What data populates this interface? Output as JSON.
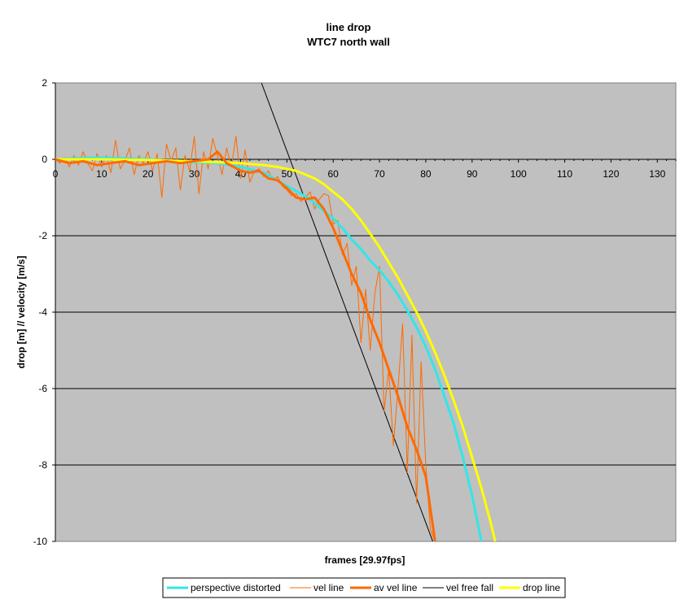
{
  "chart_data": {
    "type": "line",
    "title": "line drop",
    "subtitle": "WTC7 north wall",
    "xlabel": "frames [29.97fps]",
    "ylabel": "drop [m] // velocity [m/s]",
    "xlim": [
      0,
      134
    ],
    "ylim": [
      -10,
      2
    ],
    "xticks": [
      0,
      10,
      20,
      30,
      40,
      50,
      60,
      70,
      80,
      90,
      100,
      110,
      120,
      130
    ],
    "yticks": [
      2,
      0,
      -2,
      -4,
      -6,
      -8,
      -10
    ],
    "grid": "horizontal major",
    "plot_background": "#c0c0c0",
    "legend_position": "bottom",
    "series": [
      {
        "name": "perspective distorted",
        "color": "#33e6e6",
        "width": 3,
        "x": [
          0,
          5,
          10,
          15,
          20,
          25,
          30,
          35,
          40,
          45,
          50,
          53,
          55,
          57,
          60,
          62,
          64,
          66,
          68,
          70,
          72,
          74,
          76,
          78,
          80,
          82,
          84,
          86,
          88,
          90,
          92
        ],
        "y": [
          0,
          0.03,
          0.05,
          0.02,
          0,
          -0.05,
          -0.07,
          -0.1,
          -0.2,
          -0.35,
          -0.7,
          -0.9,
          -1.05,
          -1.25,
          -1.55,
          -1.8,
          -2.1,
          -2.35,
          -2.65,
          -2.9,
          -3.2,
          -3.55,
          -3.95,
          -4.4,
          -4.9,
          -5.5,
          -6.2,
          -6.9,
          -7.8,
          -8.8,
          -10
        ]
      },
      {
        "name": "vel line",
        "color": "#ff6a00",
        "width": 1,
        "x": [
          0,
          1,
          2,
          3,
          4,
          5,
          6,
          7,
          8,
          9,
          10,
          11,
          12,
          13,
          14,
          15,
          16,
          17,
          18,
          19,
          20,
          21,
          22,
          23,
          24,
          25,
          26,
          27,
          28,
          29,
          30,
          31,
          32,
          33,
          34,
          35,
          36,
          37,
          38,
          39,
          40,
          41,
          42,
          43,
          44,
          45,
          46,
          47,
          48,
          49,
          50,
          51,
          52,
          53,
          54,
          55,
          56,
          57,
          58,
          59,
          60,
          61,
          62,
          63,
          64,
          65,
          66,
          67,
          68,
          69,
          70,
          71,
          72,
          73,
          74,
          75,
          76,
          77,
          78,
          79,
          80,
          81,
          82
        ],
        "y": [
          0,
          -0.1,
          0.05,
          -0.2,
          0.1,
          -0.15,
          0.2,
          -0.1,
          -0.3,
          0.15,
          -0.2,
          0.1,
          -0.35,
          0.5,
          -0.25,
          -0.05,
          0.3,
          -0.4,
          0.1,
          -0.1,
          0.2,
          -0.3,
          0.15,
          -1.0,
          0.4,
          -0.05,
          0.3,
          -0.8,
          0.1,
          -0.3,
          0.6,
          -0.9,
          0.2,
          -0.25,
          0.55,
          0.1,
          -0.4,
          0.3,
          -0.2,
          0.6,
          -0.5,
          0.25,
          -0.6,
          -0.3,
          -0.25,
          -0.45,
          -0.3,
          -0.55,
          -0.45,
          -0.7,
          -0.8,
          -0.95,
          -0.9,
          -1.1,
          -1.0,
          -0.85,
          -1.3,
          -1.05,
          -0.9,
          -0.95,
          -1.7,
          -1.6,
          -2.5,
          -2.2,
          -3.3,
          -2.8,
          -4.8,
          -3.4,
          -5.0,
          -3.5,
          -2.8,
          -6.6,
          -5.5,
          -7.5,
          -6.0,
          -4.3,
          -8.2,
          -4.6,
          -9.0,
          -5.3,
          -8.0,
          -9.7,
          -10
        ]
      },
      {
        "name": "av vel line",
        "color": "#ff6a00",
        "width": 3,
        "x": [
          0,
          3,
          6,
          9,
          12,
          15,
          18,
          21,
          24,
          27,
          30,
          33,
          35,
          37,
          40,
          42,
          44,
          46,
          48,
          50,
          52,
          54,
          56,
          58,
          60,
          62,
          64,
          66,
          68,
          70,
          72,
          74,
          76,
          78,
          80,
          82
        ],
        "y": [
          0,
          -0.1,
          -0.05,
          -0.15,
          -0.1,
          -0.05,
          -0.15,
          -0.1,
          -0.05,
          -0.1,
          -0.05,
          0,
          0.2,
          -0.1,
          -0.3,
          -0.35,
          -0.3,
          -0.5,
          -0.55,
          -0.75,
          -1.0,
          -1.05,
          -1.0,
          -1.3,
          -1.8,
          -2.4,
          -3.0,
          -3.5,
          -4.2,
          -4.8,
          -5.5,
          -6.2,
          -7.0,
          -7.6,
          -8.3,
          -10
        ]
      },
      {
        "name": "vel free fall",
        "color": "#000000",
        "width": 1,
        "x": [
          44.5,
          81.5
        ],
        "y": [
          2,
          -10
        ]
      },
      {
        "name": "drop line",
        "color": "#ffff00",
        "width": 3,
        "x": [
          0,
          10,
          20,
          30,
          40,
          45,
          48,
          50,
          52,
          54,
          56,
          58,
          60,
          62,
          64,
          66,
          68,
          70,
          72,
          74,
          76,
          78,
          80,
          82,
          84,
          86,
          88,
          90,
          92,
          94,
          95
        ],
        "y": [
          0,
          0,
          -0.02,
          -0.05,
          -0.1,
          -0.15,
          -0.2,
          -0.25,
          -0.3,
          -0.4,
          -0.5,
          -0.65,
          -0.85,
          -1.05,
          -1.3,
          -1.6,
          -1.95,
          -2.3,
          -2.7,
          -3.1,
          -3.55,
          -4.0,
          -4.5,
          -5.05,
          -5.65,
          -6.3,
          -7.0,
          -7.8,
          -8.6,
          -9.5,
          -10
        ]
      }
    ]
  }
}
